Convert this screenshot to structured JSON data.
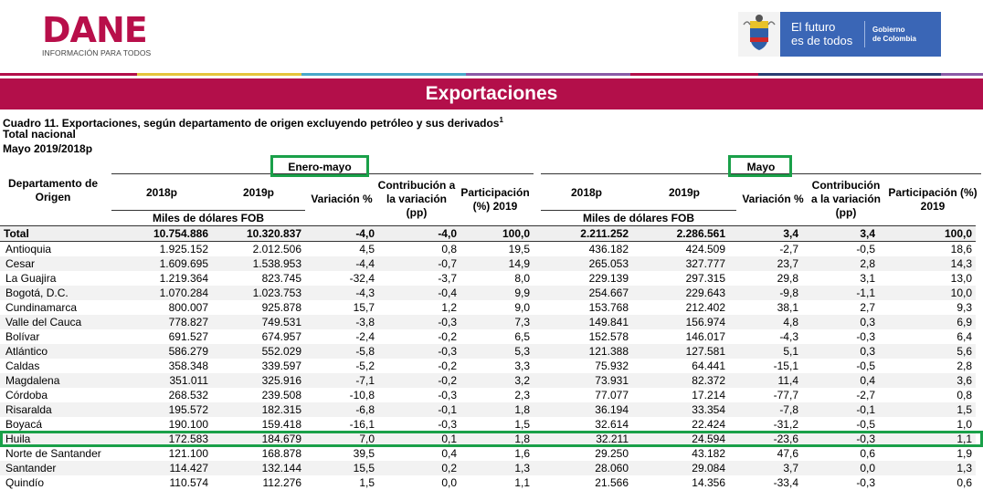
{
  "header": {
    "logo_title": "DANE",
    "logo_subtitle": "INFORMACIÓN PARA TODOS",
    "gov_line1": "El futuro",
    "gov_line2": "es de todos",
    "gov_line3": "Gobierno",
    "gov_line4": "de Colombia"
  },
  "banner_title": "Exportaciones",
  "caption": {
    "title": "Cuadro 11. Exportaciones, según departamento de origen excluyendo petróleo y sus derivados",
    "title_sup": "1",
    "line2": "Total nacional",
    "line3": "Mayo 2019/2018p"
  },
  "table": {
    "dept_header": "Departamento de Origen",
    "group1": "Enero-mayo",
    "group2": "Mayo",
    "col_2018": "2018p",
    "col_2019": "2019p",
    "col_var": "Variación %",
    "col_contrib": "Contribución a la variación (pp)",
    "col_part1": "Participación (%) 2019",
    "col_part2": "Participación (%) 2019",
    "units": "Miles de dólares FOB",
    "rows": [
      {
        "name": "Total",
        "v": [
          "10.754.886",
          "10.320.837",
          "-4,0",
          "-4,0",
          "100,0",
          "2.211.252",
          "2.286.561",
          "3,4",
          "3,4",
          "100,0"
        ]
      },
      {
        "name": "Antioquia",
        "v": [
          "1.925.152",
          "2.012.506",
          "4,5",
          "0,8",
          "19,5",
          "436.182",
          "424.509",
          "-2,7",
          "-0,5",
          "18,6"
        ]
      },
      {
        "name": "Cesar",
        "v": [
          "1.609.695",
          "1.538.953",
          "-4,4",
          "-0,7",
          "14,9",
          "265.053",
          "327.777",
          "23,7",
          "2,8",
          "14,3"
        ]
      },
      {
        "name": "La Guajira",
        "v": [
          "1.219.364",
          "823.745",
          "-32,4",
          "-3,7",
          "8,0",
          "229.139",
          "297.315",
          "29,8",
          "3,1",
          "13,0"
        ]
      },
      {
        "name": "Bogotá, D.C.",
        "v": [
          "1.070.284",
          "1.023.753",
          "-4,3",
          "-0,4",
          "9,9",
          "254.667",
          "229.643",
          "-9,8",
          "-1,1",
          "10,0"
        ]
      },
      {
        "name": "Cundinamarca",
        "v": [
          "800.007",
          "925.878",
          "15,7",
          "1,2",
          "9,0",
          "153.768",
          "212.402",
          "38,1",
          "2,7",
          "9,3"
        ]
      },
      {
        "name": "Valle del Cauca",
        "v": [
          "778.827",
          "749.531",
          "-3,8",
          "-0,3",
          "7,3",
          "149.841",
          "156.974",
          "4,8",
          "0,3",
          "6,9"
        ]
      },
      {
        "name": "Bolívar",
        "v": [
          "691.527",
          "674.957",
          "-2,4",
          "-0,2",
          "6,5",
          "152.578",
          "146.017",
          "-4,3",
          "-0,3",
          "6,4"
        ]
      },
      {
        "name": "Atlántico",
        "v": [
          "586.279",
          "552.029",
          "-5,8",
          "-0,3",
          "5,3",
          "121.388",
          "127.581",
          "5,1",
          "0,3",
          "5,6"
        ]
      },
      {
        "name": "Caldas",
        "v": [
          "358.348",
          "339.597",
          "-5,2",
          "-0,2",
          "3,3",
          "75.932",
          "64.441",
          "-15,1",
          "-0,5",
          "2,8"
        ]
      },
      {
        "name": "Magdalena",
        "v": [
          "351.011",
          "325.916",
          "-7,1",
          "-0,2",
          "3,2",
          "73.931",
          "82.372",
          "11,4",
          "0,4",
          "3,6"
        ]
      },
      {
        "name": "Córdoba",
        "v": [
          "268.532",
          "239.508",
          "-10,8",
          "-0,3",
          "2,3",
          "77.077",
          "17.214",
          "-77,7",
          "-2,7",
          "0,8"
        ]
      },
      {
        "name": "Risaralda",
        "v": [
          "195.572",
          "182.315",
          "-6,8",
          "-0,1",
          "1,8",
          "36.194",
          "33.354",
          "-7,8",
          "-0,1",
          "1,5"
        ]
      },
      {
        "name": "Boyacá",
        "v": [
          "190.100",
          "159.418",
          "-16,1",
          "-0,3",
          "1,5",
          "32.614",
          "22.424",
          "-31,2",
          "-0,5",
          "1,0"
        ]
      },
      {
        "name": "Huila",
        "v": [
          "172.583",
          "184.679",
          "7,0",
          "0,1",
          "1,8",
          "32.211",
          "24.594",
          "-23,6",
          "-0,3",
          "1,1"
        ]
      },
      {
        "name": "Norte de Santander",
        "v": [
          "121.100",
          "168.878",
          "39,5",
          "0,4",
          "1,6",
          "29.250",
          "43.182",
          "47,6",
          "0,6",
          "1,9"
        ]
      },
      {
        "name": "Santander",
        "v": [
          "114.427",
          "132.144",
          "15,5",
          "0,2",
          "1,3",
          "28.060",
          "29.084",
          "3,7",
          "0,0",
          "1,3"
        ]
      },
      {
        "name": "Quindío",
        "v": [
          "110.574",
          "112.276",
          "1,5",
          "0,0",
          "1,1",
          "21.566",
          "14.356",
          "-33,4",
          "-0,3",
          "0,6"
        ]
      }
    ]
  },
  "colors": {
    "brand": "#b30f4a",
    "highlight": "#1aa049",
    "gov_blue": "#3a66b6"
  }
}
